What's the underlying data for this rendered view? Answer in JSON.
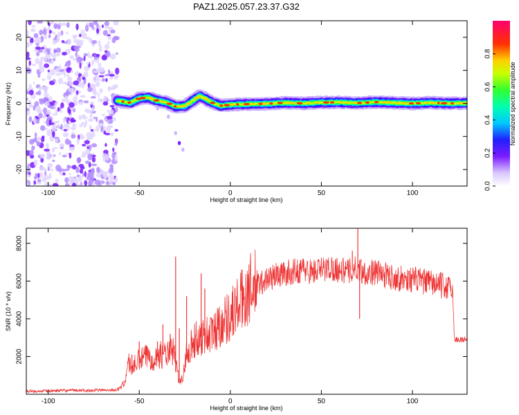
{
  "chart_data": [
    {
      "type": "heatmap",
      "title": "PAZ1.2025.057.23.37.G32",
      "xlabel": "Height of straight line (km)",
      "ylabel": "Frequency (Hz)",
      "xlim": [
        -112,
        130
      ],
      "ylim": [
        -25,
        25
      ],
      "xticks": [
        -100,
        -50,
        0,
        50,
        100
      ],
      "yticks": [
        -20,
        -10,
        0,
        10,
        20
      ],
      "colorbar": {
        "label": "Normalized spectral amplitude",
        "range": [
          0,
          1
        ],
        "ticks": [
          "0.0",
          "0.2",
          "0.4",
          "0.6",
          "0.8"
        ]
      },
      "noise_region_x": [
        -112,
        -62
      ],
      "ridge": {
        "x": [
          -62,
          -55,
          -50,
          -45,
          -40,
          -35,
          -30,
          -25,
          -20,
          -17,
          -14,
          -10,
          -5,
          0,
          10,
          20,
          30,
          40,
          50,
          60,
          70,
          80,
          90,
          100,
          110,
          120,
          130
        ],
        "y": [
          0.8,
          0.2,
          1.5,
          1.8,
          0.8,
          0.3,
          -1.0,
          -0.8,
          1.0,
          2.2,
          1.6,
          0.2,
          -0.7,
          -0.4,
          -0.2,
          -0.1,
          0.2,
          0.0,
          0.3,
          0.3,
          0.1,
          0.4,
          0.2,
          0.0,
          0.2,
          0.0,
          0.1
        ]
      },
      "trail": {
        "x": [
          -40,
          -34,
          -30,
          -28,
          -26
        ],
        "y": [
          -1.5,
          -4,
          -9,
          -12,
          -14
        ]
      }
    },
    {
      "type": "line",
      "xlabel": "Height of straight line (km)",
      "ylabel": "SNR (10 * v/v)",
      "xlim": [
        -112,
        130
      ],
      "ylim": [
        0,
        8800
      ],
      "xticks": [
        -100,
        -50,
        0,
        50,
        100
      ],
      "yticks": [
        2000,
        4000,
        6000,
        8000
      ],
      "color": "#ee3333",
      "series": [
        {
          "x": [
            -112,
            -100,
            -90,
            -80,
            -70,
            -62,
            -58,
            -56,
            -54,
            -50,
            -46,
            -42,
            -38,
            -34,
            -31,
            -30,
            -28,
            -26,
            -24,
            -20,
            -15,
            -10,
            -5,
            0,
            5,
            10,
            15,
            20,
            25,
            30,
            35,
            40,
            45,
            50,
            55,
            60,
            65,
            70,
            75,
            80,
            85,
            90,
            95,
            100,
            105,
            110,
            115,
            118,
            120,
            121,
            122,
            123,
            125,
            130
          ],
          "y": [
            150,
            180,
            200,
            200,
            220,
            230,
            600,
            1700,
            1400,
            1800,
            2000,
            1900,
            2100,
            2100,
            2300,
            1600,
            700,
            800,
            2300,
            2800,
            3100,
            3200,
            3800,
            4200,
            4800,
            5500,
            5800,
            6100,
            6300,
            6400,
            6500,
            6600,
            6500,
            6600,
            6700,
            6600,
            6500,
            6700,
            6400,
            6500,
            6300,
            6200,
            6100,
            6100,
            6000,
            5900,
            5800,
            5700,
            5600,
            5600,
            5700,
            2900,
            2900,
            2900
          ]
        }
      ],
      "spikes": [
        {
          "x": -54,
          "y": 2100
        },
        {
          "x": -50,
          "y": 2800
        },
        {
          "x": -40,
          "y": 2800
        },
        {
          "x": -37,
          "y": 3700
        },
        {
          "x": -33,
          "y": 3200
        },
        {
          "x": -30,
          "y": 7300
        },
        {
          "x": -28,
          "y": 3500
        },
        {
          "x": -24,
          "y": 5200
        },
        {
          "x": -16,
          "y": 6400
        },
        {
          "x": -14,
          "y": 5600
        },
        {
          "x": 70,
          "y": 8800
        },
        {
          "x": 71,
          "y": 4000
        },
        {
          "x": 67,
          "y": 7600
        },
        {
          "x": 40,
          "y": 7200
        }
      ]
    }
  ]
}
